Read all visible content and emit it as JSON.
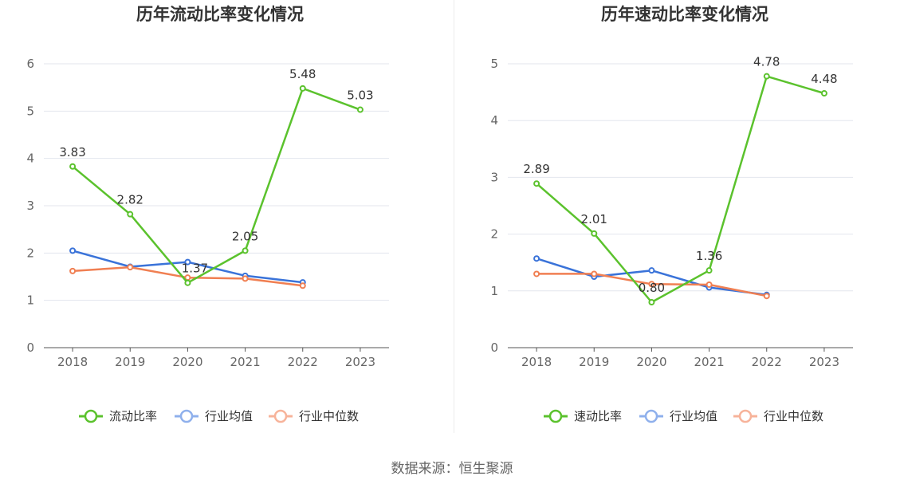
{
  "colors": {
    "main": "#5bc22d",
    "avg": "#3a73d9",
    "median": "#f07f52",
    "avg_legend": "#8fb0ec",
    "median_legend": "#f7b39a",
    "grid": "#e3e6ee",
    "axis": "#555555"
  },
  "source": "数据来源：恒生聚源",
  "chart_data": [
    {
      "type": "line",
      "title": "历年流动比率变化情况",
      "categories": [
        "2018",
        "2019",
        "2020",
        "2021",
        "2022",
        "2023"
      ],
      "ylim": [
        0,
        6
      ],
      "yticks": [
        0,
        1,
        2,
        3,
        4,
        5,
        6
      ],
      "series": [
        {
          "name": "流动比率",
          "values": [
            3.83,
            2.82,
            1.37,
            2.05,
            5.48,
            5.03
          ],
          "labels": [
            "3.83",
            "2.82",
            "1.37",
            "2.05",
            "5.48",
            "5.03"
          ]
        },
        {
          "name": "行业均值",
          "values": [
            2.05,
            1.71,
            1.81,
            1.52,
            1.38,
            null
          ]
        },
        {
          "name": "行业中位数",
          "values": [
            1.62,
            1.7,
            1.48,
            1.46,
            1.31,
            null
          ]
        }
      ]
    },
    {
      "type": "line",
      "title": "历年速动比率变化情况",
      "categories": [
        "2018",
        "2019",
        "2020",
        "2021",
        "2022",
        "2023"
      ],
      "ylim": [
        0,
        5
      ],
      "yticks": [
        0,
        1,
        2,
        3,
        4,
        5
      ],
      "series": [
        {
          "name": "速动比率",
          "values": [
            2.89,
            2.01,
            0.8,
            1.36,
            4.78,
            4.48
          ],
          "labels": [
            "2.89",
            "2.01",
            "0.80",
            "1.36",
            "4.78",
            "4.48"
          ]
        },
        {
          "name": "行业均值",
          "values": [
            1.57,
            1.25,
            1.36,
            1.06,
            0.93,
            null
          ]
        },
        {
          "name": "行业中位数",
          "values": [
            1.3,
            1.3,
            1.12,
            1.11,
            0.91,
            null
          ]
        }
      ]
    }
  ]
}
